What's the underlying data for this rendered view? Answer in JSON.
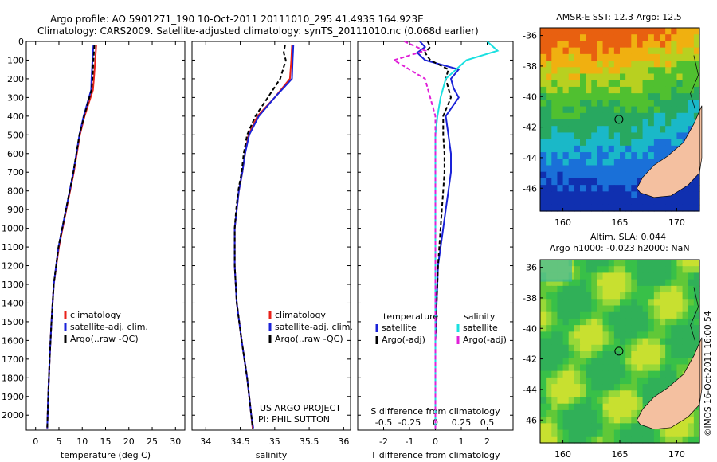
{
  "header": {
    "line1": "Argo profile: AO 5901271_190 10-Oct-2011 20111010_295 41.493S 164.923E",
    "line2": "Climatology: CARS2009. Satellite-adjusted climatology: synTS_20111010.nc (0.068d earlier)"
  },
  "colors": {
    "climatology": "#e8221a",
    "satellite": "#1a22d8",
    "argo": "#000000",
    "cyan": "#1ae0e0",
    "magenta": "#e020d8",
    "land": "#f4c0a0"
  },
  "chart_data": [
    {
      "type": "line",
      "id": "temperature",
      "xlabel": "temperature (deg C)",
      "ylabel": "",
      "xlim": [
        -2,
        32
      ],
      "ylim": [
        2080,
        0
      ],
      "xticks": [
        0,
        5,
        10,
        15,
        20,
        25,
        30
      ],
      "yticks": [
        0,
        100,
        200,
        300,
        400,
        500,
        600,
        700,
        800,
        900,
        1000,
        1100,
        1200,
        1300,
        1400,
        1500,
        1600,
        1700,
        1800,
        1900,
        2000
      ],
      "legend": [
        "climatology",
        "satellite-adj. clim.",
        "Argo(..raw -QC)"
      ],
      "series": [
        {
          "name": "climatology",
          "color": "#e8221a",
          "depth": [
            20,
            100,
            200,
            260,
            400,
            500,
            700,
            900,
            1100,
            1300,
            1500,
            1700,
            1900,
            2070
          ],
          "values": [
            13.0,
            12.8,
            12.5,
            12.3,
            10.5,
            9.5,
            8.2,
            6.6,
            5.0,
            3.9,
            3.4,
            3.0,
            2.7,
            2.5
          ]
        },
        {
          "name": "satellite-adj. clim.",
          "color": "#1a22d8",
          "depth": [
            20,
            100,
            200,
            260,
            400,
            500,
            700,
            900,
            1100,
            1300,
            1500,
            1700,
            1900,
            2070
          ],
          "values": [
            12.4,
            12.2,
            12.0,
            11.9,
            10.3,
            9.4,
            8.1,
            6.5,
            4.9,
            3.9,
            3.4,
            3.0,
            2.7,
            2.5
          ]
        },
        {
          "name": "Argo(..raw -QC)",
          "color": "#000000",
          "depth": [
            20,
            100,
            200,
            260,
            400,
            500,
            700,
            900,
            1100,
            1300,
            1500,
            1700,
            1900,
            2070
          ],
          "values": [
            12.6,
            12.4,
            12.2,
            12.0,
            10.4,
            9.4,
            8.1,
            6.5,
            4.9,
            3.9,
            3.4,
            3.0,
            2.7,
            2.5
          ]
        }
      ]
    },
    {
      "type": "line",
      "id": "salinity",
      "xlabel": "salinity",
      "ylabel": "",
      "xlim": [
        33.8,
        36.1
      ],
      "ylim": [
        2080,
        0
      ],
      "xticks": [
        34,
        34.5,
        35,
        35.5,
        36
      ],
      "legend": [
        "climatology",
        "satellite-adj. clim.",
        "Argo(..raw -QC)"
      ],
      "annotation": [
        "US ARGO PROJECT",
        "PI: PHIL SUTTON"
      ],
      "series": [
        {
          "name": "climatology",
          "color": "#e8221a",
          "depth": [
            20,
            100,
            200,
            300,
            400,
            500,
            600,
            700,
            800,
            900,
            1000,
            1200,
            1400,
            1600,
            1800,
            2000,
            2070
          ],
          "values": [
            35.25,
            35.24,
            35.22,
            35.0,
            34.75,
            34.62,
            34.57,
            34.53,
            34.48,
            34.45,
            34.42,
            34.42,
            34.45,
            34.52,
            34.6,
            34.66,
            34.68
          ]
        },
        {
          "name": "satellite-adj. clim.",
          "color": "#1a22d8",
          "depth": [
            20,
            100,
            200,
            300,
            400,
            500,
            600,
            700,
            800,
            900,
            1000,
            1200,
            1400,
            1600,
            1800,
            2000,
            2070
          ],
          "values": [
            35.27,
            35.26,
            35.25,
            35.0,
            34.77,
            34.63,
            34.57,
            34.53,
            34.48,
            34.45,
            34.42,
            34.42,
            34.45,
            34.52,
            34.6,
            34.66,
            34.69
          ]
        },
        {
          "name": "Argo(..raw -QC)",
          "color": "#000000",
          "depth": [
            20,
            60,
            100,
            150,
            200,
            300,
            400,
            500,
            600,
            700,
            800,
            900,
            1000,
            1200,
            1400,
            1600,
            1800,
            2000,
            2070
          ],
          "values": [
            35.15,
            35.13,
            35.16,
            35.12,
            35.08,
            34.9,
            34.72,
            34.6,
            34.55,
            34.52,
            34.47,
            34.44,
            34.42,
            34.42,
            34.45,
            34.52,
            34.6,
            34.66,
            34.68
          ]
        }
      ]
    },
    {
      "type": "line",
      "id": "difference",
      "xlabel": "T difference from climatology",
      "xlabel2": "S difference from climatology",
      "xlim": [
        -3,
        3
      ],
      "ylim": [
        2080,
        0
      ],
      "xticks": [
        -2,
        -1,
        0,
        1,
        2
      ],
      "xticks2": [
        -0.5,
        -0.25,
        0,
        0.25,
        0.5
      ],
      "legend_titles": [
        "temperature",
        "salinity"
      ],
      "legend": [
        "satellite",
        "Argo(-adj)",
        "satellite",
        "Argo(-adj)"
      ],
      "series": [
        {
          "name": "satellite",
          "group": "temperature",
          "color": "#1a22d8",
          "dash": false,
          "depth": [
            0,
            30,
            60,
            100,
            150,
            200,
            250,
            300,
            400,
            500,
            600,
            700,
            800,
            900,
            1000,
            1200,
            1400,
            1600,
            1800,
            2000,
            2070
          ],
          "values": [
            -0.6,
            -0.4,
            -0.7,
            -0.4,
            0.9,
            0.6,
            0.7,
            0.9,
            0.4,
            0.5,
            0.6,
            0.6,
            0.5,
            0.4,
            0.3,
            0.1,
            0.05,
            0.0,
            0.0,
            0.0,
            0.0
          ]
        },
        {
          "name": "Argo(-adj)",
          "group": "temperature",
          "color": "#000000",
          "dash": true,
          "depth": [
            0,
            30,
            60,
            100,
            150,
            200,
            250,
            300,
            400,
            500,
            600,
            700,
            800,
            900,
            1000,
            1200,
            1400,
            1600,
            1800,
            2000,
            2070
          ],
          "values": [
            -0.3,
            -0.2,
            -0.4,
            -0.2,
            0.5,
            0.4,
            0.5,
            0.6,
            0.3,
            0.3,
            0.35,
            0.35,
            0.3,
            0.25,
            0.2,
            0.1,
            0.05,
            0.0,
            0.0,
            0.0,
            0.0
          ]
        },
        {
          "name": "satellite",
          "group": "salinity",
          "color": "#1ae0e0",
          "dash": false,
          "depth": [
            0,
            50,
            100,
            200,
            300,
            400,
            500,
            700,
            900,
            1100,
            1300,
            1500,
            1700,
            1900,
            2070
          ],
          "values": [
            0.5,
            0.6,
            0.3,
            0.1,
            0.05,
            0.02,
            0.0,
            0.0,
            0.0,
            0.0,
            0.0,
            0.0,
            0.0,
            0.0,
            0.0
          ]
        },
        {
          "name": "Argo(-adj)",
          "group": "salinity",
          "color": "#e020d8",
          "dash": true,
          "depth": [
            0,
            50,
            100,
            200,
            300,
            400,
            500,
            700,
            900,
            1100,
            1300,
            1500,
            1700,
            1900,
            2070
          ],
          "values": [
            -0.3,
            -0.1,
            -0.4,
            -0.1,
            -0.05,
            0.0,
            0.0,
            0.0,
            0.0,
            0.0,
            0.0,
            0.0,
            0.0,
            0.0,
            0.0
          ]
        }
      ]
    },
    {
      "type": "heatmap",
      "id": "sst-map",
      "title": "AMSR-E SST: 12.3  Argo: 12.5",
      "xlim": [
        158,
        172
      ],
      "ylim": [
        -47.5,
        -35.5
      ],
      "xticks": [
        160,
        165,
        170
      ],
      "yticks": [
        -36,
        -38,
        -40,
        -42,
        -44,
        -46
      ],
      "marker": {
        "lon": 164.923,
        "lat": -41.493
      }
    },
    {
      "type": "heatmap",
      "id": "sla-map",
      "title": "Altim. SLA: 0.044",
      "subtitle": "Argo h1000: -0.023 h2000: NaN",
      "xlim": [
        158,
        172
      ],
      "ylim": [
        -47.5,
        -35.5
      ],
      "xticks": [
        160,
        165,
        170
      ],
      "yticks": [
        -36,
        -38,
        -40,
        -42,
        -44,
        -46
      ],
      "marker": {
        "lon": 164.923,
        "lat": -41.493
      }
    }
  ],
  "credit": "©IMOS 16-Oct-2011 16:00:54"
}
